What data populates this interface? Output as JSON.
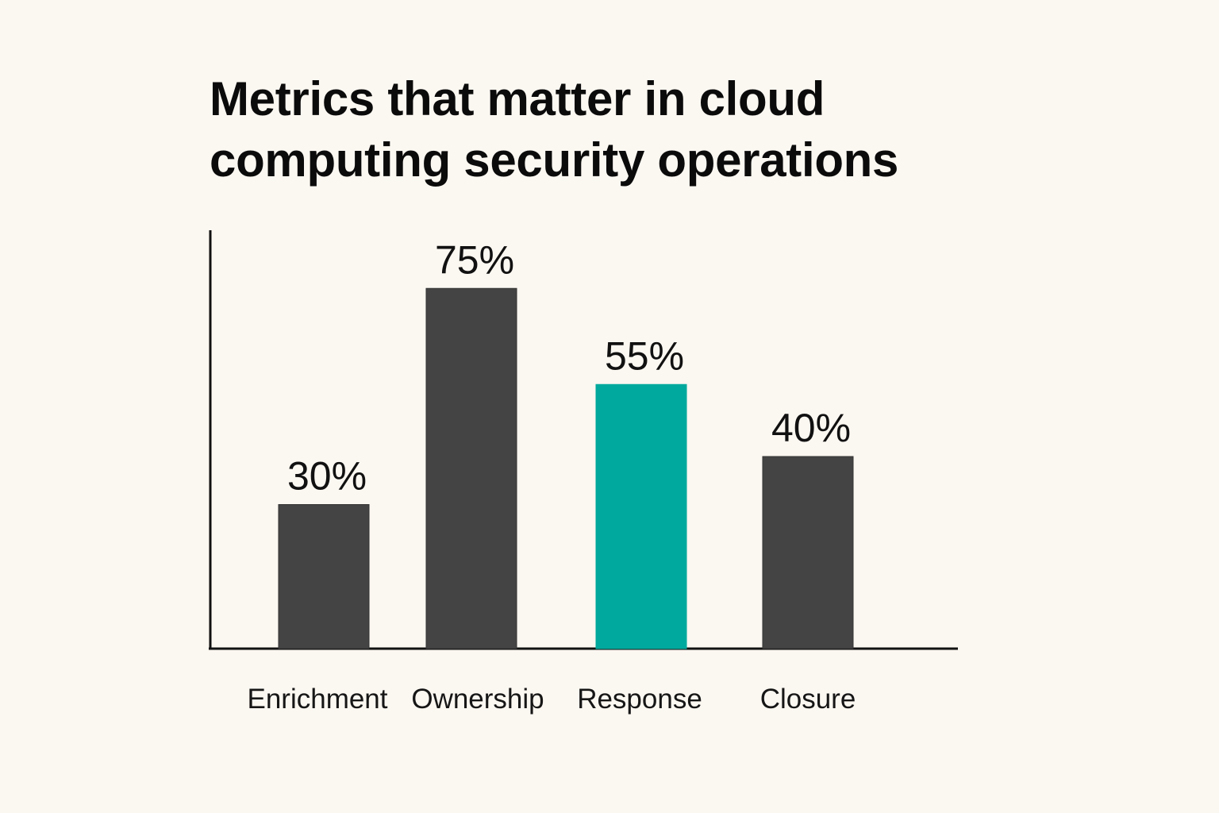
{
  "chart_data": {
    "type": "bar",
    "title": "Metrics that matter in cloud computing security operations",
    "title_lines": [
      "Metrics that matter in cloud",
      "computing security operations"
    ],
    "categories": [
      "Enrichment",
      "Ownership",
      "Response",
      "Closure"
    ],
    "values": [
      30,
      75,
      55,
      40
    ],
    "value_labels": [
      "30%",
      "75%",
      "55%",
      "40%"
    ],
    "xlabel": "",
    "ylabel": "",
    "ylim": [
      0,
      100
    ],
    "grid": false,
    "legend": "none",
    "colors": {
      "default_bar": "#444444",
      "highlight_bar": "#00a99d",
      "axis": "#111111",
      "background": "#fbf7f1"
    },
    "highlight_index": 2
  }
}
